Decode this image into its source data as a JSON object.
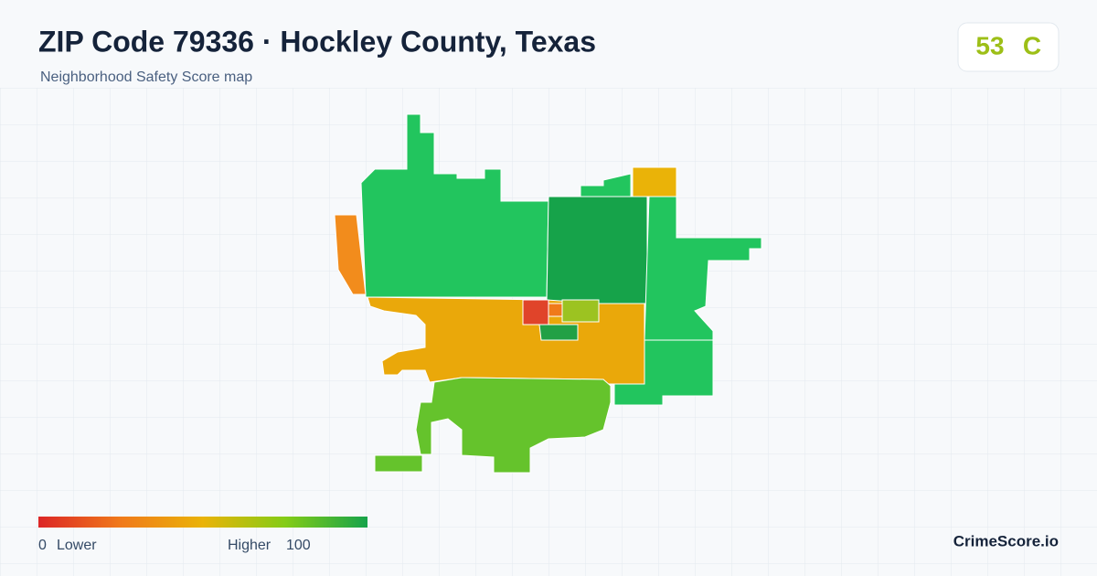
{
  "header": {
    "title": "ZIP Code 79336 · Hockley County, Texas",
    "subtitle": "Neighborhood Safety Score map"
  },
  "score": {
    "value": 53,
    "grade": "C"
  },
  "legend": {
    "min": 0,
    "min_label": "Lower",
    "max_label": "Higher",
    "max": 100
  },
  "footer": {
    "brand": "CrimeScore.io"
  }
}
